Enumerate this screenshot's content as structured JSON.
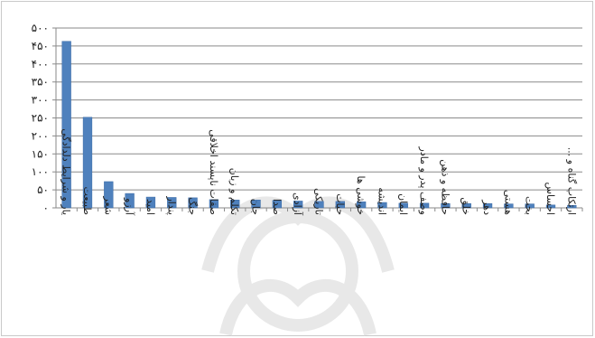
{
  "chart_data": {
    "type": "bar",
    "title": "",
    "xlabel": "",
    "ylabel": "",
    "ylim": [
      0,
      500
    ],
    "yticks": [
      "۰",
      "۵۰",
      "۱۰۰",
      "۱۵۰",
      "۲۰۰",
      "۲۵۰",
      "۳۰۰",
      "۳۵۰",
      "۴۰۰",
      "۴۵۰",
      "۵۰۰"
    ],
    "grid": true,
    "legend": "none",
    "bar_color": "#4f81bd",
    "categories": [
      "یار و شرایط دلدادگی",
      "طبیعت",
      "شعر",
      "آرزو",
      "امید",
      "پندار",
      "جنگ",
      "صفات ناپسند اخلاقی",
      "تکلم و زبان",
      "جان",
      "صدا",
      "آزادی",
      "تاریکی",
      "حیات",
      "خوشی ها",
      "اندیشه",
      "ایمان",
      "وصف پدر و مادر",
      "حافظه و ذهن",
      "خلق",
      "دهر",
      "هستی",
      "بخت",
      "احساس",
      "ارتکاب گناه و ..."
    ],
    "values": [
      463,
      252,
      73,
      40,
      30,
      29,
      28,
      23,
      22,
      22,
      21,
      19,
      18,
      18,
      17,
      15,
      13,
      13,
      12,
      12,
      12,
      11,
      11,
      8,
      7
    ]
  }
}
